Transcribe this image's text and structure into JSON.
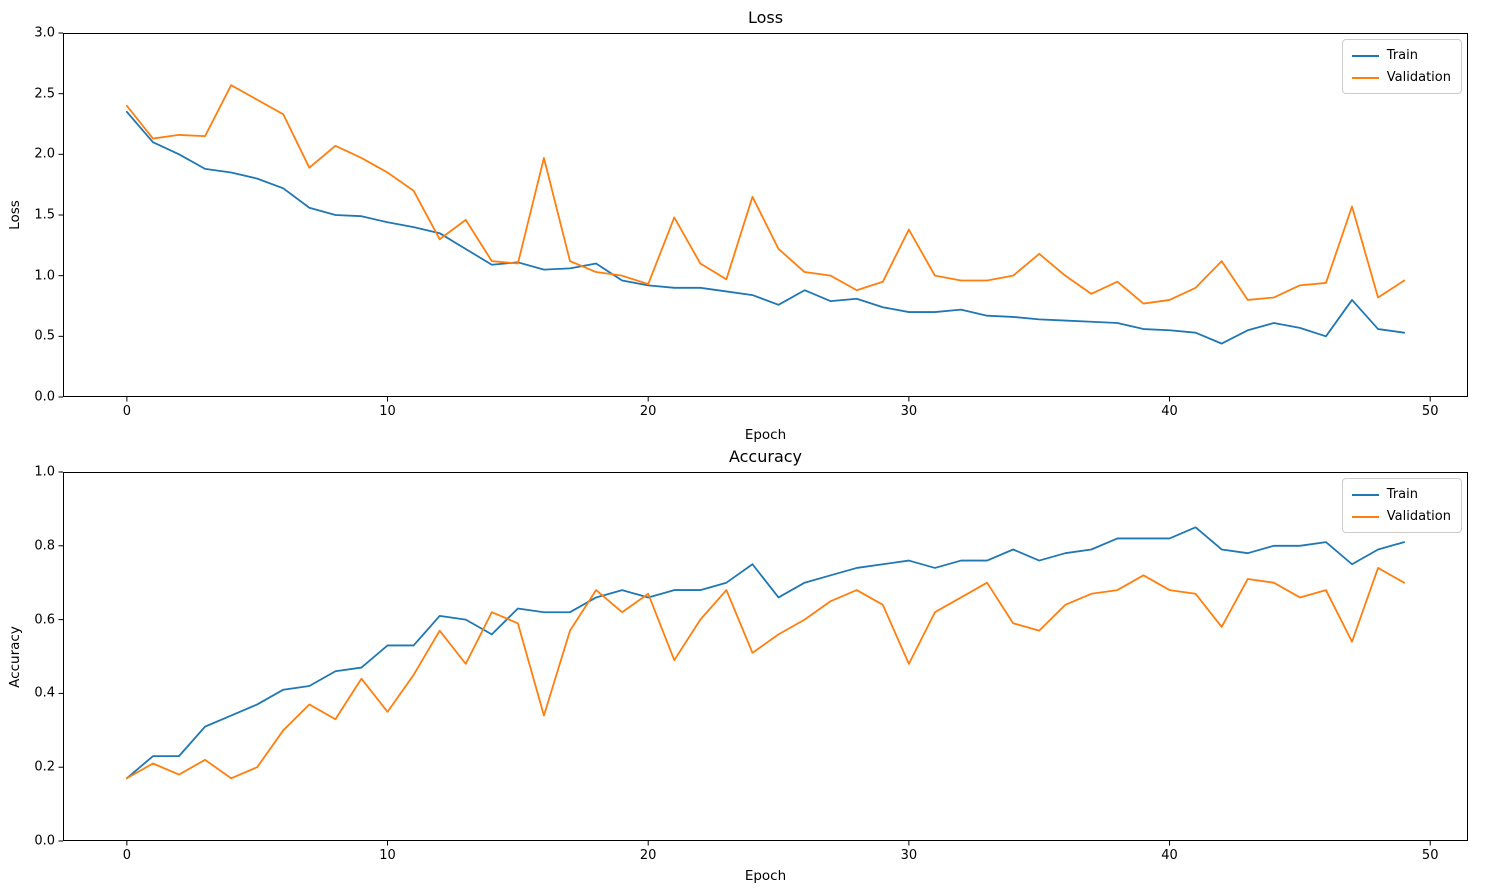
{
  "figure": {
    "background": "#ffffff",
    "axis_color": "#000000",
    "legend_border_color": "#cccccc"
  },
  "chart_data": [
    {
      "type": "line",
      "title": "Loss",
      "xlabel": "Epoch",
      "ylabel": "Loss",
      "xlim": [
        -2.45,
        51.45
      ],
      "ylim": [
        0.0,
        3.0
      ],
      "xticks": [
        0,
        10,
        20,
        30,
        40,
        50
      ],
      "xtick_labels": [
        "0",
        "10",
        "20",
        "30",
        "40",
        "50"
      ],
      "yticks": [
        0.0,
        0.5,
        1.0,
        1.5,
        2.0,
        2.5,
        3.0
      ],
      "ytick_labels": [
        "0.0",
        "0.5",
        "1.0",
        "1.5",
        "2.0",
        "2.5",
        "3.0"
      ],
      "grid": false,
      "legend": {
        "position": "upper right",
        "entries": [
          "Train",
          "Validation"
        ]
      },
      "x": [
        0,
        1,
        2,
        3,
        4,
        5,
        6,
        7,
        8,
        9,
        10,
        11,
        12,
        13,
        14,
        15,
        16,
        17,
        18,
        19,
        20,
        21,
        22,
        23,
        24,
        25,
        26,
        27,
        28,
        29,
        30,
        31,
        32,
        33,
        34,
        35,
        36,
        37,
        38,
        39,
        40,
        41,
        42,
        43,
        44,
        45,
        46,
        47,
        48,
        49
      ],
      "series": [
        {
          "name": "Train",
          "color": "#1f77b4",
          "values": [
            2.35,
            2.1,
            2.0,
            1.88,
            1.85,
            1.8,
            1.72,
            1.56,
            1.5,
            1.49,
            1.44,
            1.4,
            1.35,
            1.22,
            1.09,
            1.11,
            1.05,
            1.06,
            1.1,
            0.96,
            0.92,
            0.9,
            0.9,
            0.87,
            0.84,
            0.76,
            0.88,
            0.79,
            0.81,
            0.74,
            0.7,
            0.7,
            0.72,
            0.67,
            0.66,
            0.64,
            0.63,
            0.62,
            0.61,
            0.56,
            0.55,
            0.53,
            0.44,
            0.55,
            0.61,
            0.57,
            0.5,
            0.8,
            0.56,
            0.53
          ]
        },
        {
          "name": "Validation",
          "color": "#ff7f0e",
          "values": [
            2.4,
            2.13,
            2.16,
            2.15,
            2.57,
            2.45,
            2.33,
            1.89,
            2.07,
            1.97,
            1.85,
            1.7,
            1.3,
            1.46,
            1.12,
            1.1,
            1.97,
            1.12,
            1.03,
            1.0,
            0.93,
            1.48,
            1.1,
            0.97,
            1.65,
            1.22,
            1.03,
            1.0,
            0.88,
            0.95,
            1.38,
            1.0,
            0.96,
            0.96,
            1.0,
            1.18,
            1.0,
            0.85,
            0.95,
            0.77,
            0.8,
            0.9,
            1.12,
            0.8,
            0.82,
            0.92,
            0.94,
            1.57,
            0.82,
            0.96
          ]
        }
      ]
    },
    {
      "type": "line",
      "title": "Accuracy",
      "xlabel": "Epoch",
      "ylabel": "Accuracy",
      "xlim": [
        -2.45,
        51.45
      ],
      "ylim": [
        0.0,
        1.0
      ],
      "xticks": [
        0,
        10,
        20,
        30,
        40,
        50
      ],
      "xtick_labels": [
        "0",
        "10",
        "20",
        "30",
        "40",
        "50"
      ],
      "yticks": [
        0.0,
        0.2,
        0.4,
        0.6,
        0.8,
        1.0
      ],
      "ytick_labels": [
        "0.0",
        "0.2",
        "0.4",
        "0.6",
        "0.8",
        "1.0"
      ],
      "grid": false,
      "legend": {
        "position": "upper right",
        "entries": [
          "Train",
          "Validation"
        ]
      },
      "x": [
        0,
        1,
        2,
        3,
        4,
        5,
        6,
        7,
        8,
        9,
        10,
        11,
        12,
        13,
        14,
        15,
        16,
        17,
        18,
        19,
        20,
        21,
        22,
        23,
        24,
        25,
        26,
        27,
        28,
        29,
        30,
        31,
        32,
        33,
        34,
        35,
        36,
        37,
        38,
        39,
        40,
        41,
        42,
        43,
        44,
        45,
        46,
        47,
        48,
        49
      ],
      "series": [
        {
          "name": "Train",
          "color": "#1f77b4",
          "values": [
            0.17,
            0.23,
            0.23,
            0.31,
            0.34,
            0.37,
            0.41,
            0.42,
            0.46,
            0.47,
            0.53,
            0.53,
            0.61,
            0.6,
            0.56,
            0.63,
            0.62,
            0.62,
            0.66,
            0.68,
            0.66,
            0.68,
            0.68,
            0.7,
            0.75,
            0.66,
            0.7,
            0.72,
            0.74,
            0.75,
            0.76,
            0.74,
            0.76,
            0.76,
            0.79,
            0.76,
            0.78,
            0.79,
            0.82,
            0.82,
            0.82,
            0.85,
            0.79,
            0.78,
            0.8,
            0.8,
            0.81,
            0.75,
            0.79,
            0.81
          ]
        },
        {
          "name": "Validation",
          "color": "#ff7f0e",
          "values": [
            0.17,
            0.21,
            0.18,
            0.22,
            0.17,
            0.2,
            0.3,
            0.37,
            0.33,
            0.44,
            0.35,
            0.45,
            0.57,
            0.48,
            0.62,
            0.59,
            0.34,
            0.57,
            0.68,
            0.62,
            0.67,
            0.49,
            0.6,
            0.68,
            0.51,
            0.56,
            0.6,
            0.65,
            0.68,
            0.64,
            0.48,
            0.62,
            0.66,
            0.7,
            0.59,
            0.57,
            0.64,
            0.67,
            0.68,
            0.72,
            0.68,
            0.67,
            0.58,
            0.71,
            0.7,
            0.66,
            0.68,
            0.54,
            0.74,
            0.7
          ]
        }
      ]
    }
  ]
}
